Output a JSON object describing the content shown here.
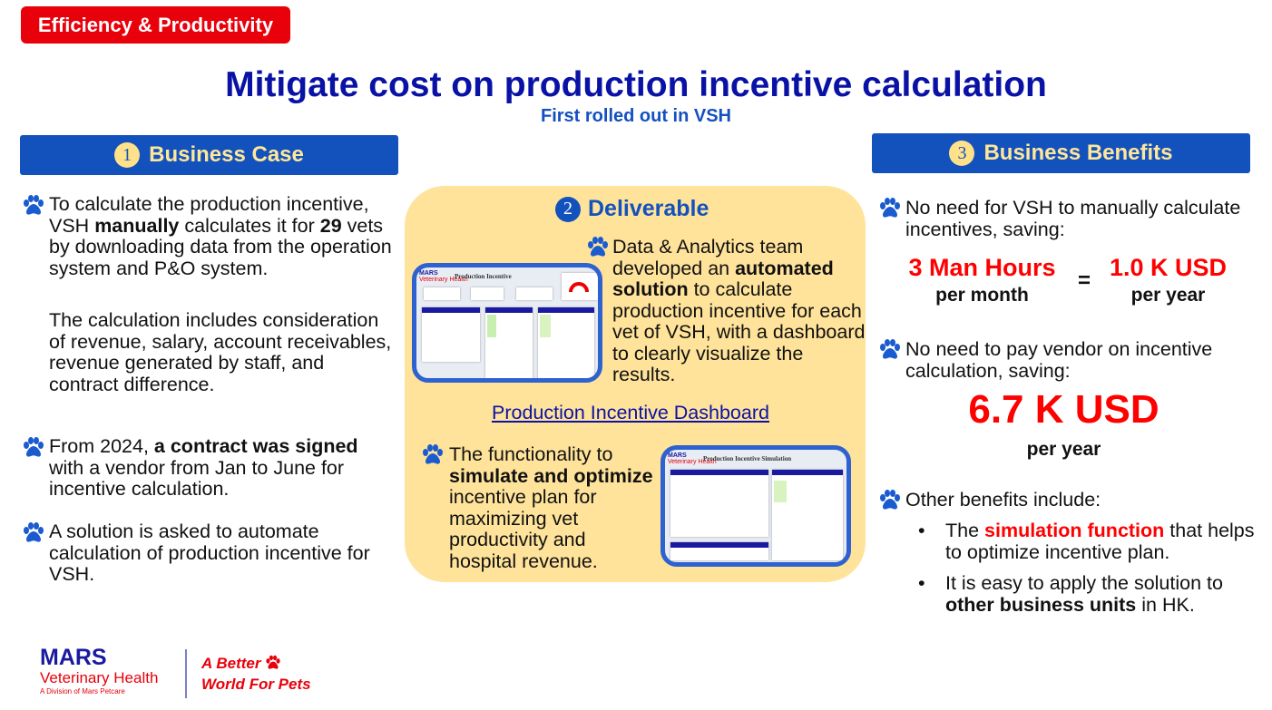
{
  "tag": "Efficiency & Productivity",
  "title": "Mitigate cost on production incentive calculation",
  "subtitle": "First rolled out in VSH",
  "section1": {
    "num": "1",
    "label": "Business Case",
    "p1": [
      "To calculate the production incentive, VSH ",
      "manually",
      " calculates it for ",
      "29",
      " vets by downloading data from the operation system and P&O system."
    ],
    "p1b": "The calculation includes consideration of revenue, salary, account receivables, revenue generated by staff, and contract difference.",
    "p2": [
      "From 2024, ",
      "a contract was signed",
      " with a vendor from Jan to June for incentive calculation."
    ],
    "p3": "A solution is asked to automate calculation of production incentive for VSH."
  },
  "section2": {
    "num": "2",
    "label": "Deliverable",
    "p1": [
      "Data & Analytics team developed an ",
      "automated solution",
      " to calculate production incentive for each vet of VSH, with a dashboard to clearly visualize the results."
    ],
    "link": "Production Incentive Dashboard",
    "p2": [
      "The functionality to ",
      "simulate and optimize",
      " incentive plan for maximizing vet productivity and hospital revenue."
    ],
    "thumb1": {
      "brand": "MARS",
      "brand_sub": "Veterinary Health",
      "title": "Production Incentive"
    },
    "thumb2": {
      "brand": "MARS",
      "brand_sub": "Veterinary Health",
      "title": "Production Incentive Simulation"
    }
  },
  "section3": {
    "num": "3",
    "label": "Business Benefits",
    "b1": "No need for VSH to manually calculate incentives, saving:",
    "hours": "3 Man Hours",
    "hours_unit": "per month",
    "eq": "=",
    "usd1": "1.0 K USD",
    "usd1_unit": "per year",
    "b2": "No need to pay vendor on incentive calculation, saving:",
    "usd2": "6.7 K USD",
    "usd2_unit": "per year",
    "b3": "Other benefits include:",
    "li1": [
      "The ",
      "simulation function",
      " that helps to optimize incentive plan."
    ],
    "li2": [
      "It is easy to apply the solution to ",
      "other business units",
      " in HK."
    ]
  },
  "footer": {
    "brand": "MARS",
    "brand_sub": "Veterinary Health",
    "division": "A Division of Mars Petcare",
    "slogan1": "A Better",
    "slogan2": "World For Pets"
  },
  "colors": {
    "accent": "#e8000b",
    "primary": "#1352bd",
    "title": "#0a12a6",
    "panel": "#ffe39a"
  }
}
